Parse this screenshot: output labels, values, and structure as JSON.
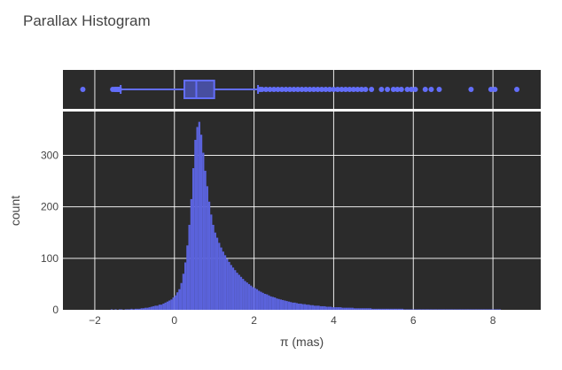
{
  "chart_data": {
    "type": "bar",
    "title": "Parallax Histogram",
    "xlabel": "π (mas)",
    "ylabel": "count",
    "xlim": [
      -2.8,
      9.2
    ],
    "ylim": [
      0,
      385
    ],
    "grid": true,
    "x_ticks": [
      -2,
      0,
      2,
      4,
      6,
      8
    ],
    "x_tick_labels": [
      "−2",
      "0",
      "2",
      "4",
      "6",
      "8"
    ],
    "y_ticks": [
      0,
      100,
      200,
      300
    ],
    "y_tick_labels": [
      "0",
      "100",
      "200",
      "300"
    ],
    "bin_width": 0.05,
    "bin_start": -1.6,
    "histogram_counts": [
      1,
      0,
      1,
      0,
      1,
      1,
      0,
      1,
      1,
      1,
      2,
      1,
      2,
      2,
      2,
      3,
      3,
      4,
      4,
      5,
      6,
      7,
      8,
      8,
      10,
      10,
      12,
      14,
      16,
      18,
      20,
      24,
      28,
      34,
      40,
      52,
      70,
      92,
      125,
      165,
      215,
      275,
      330,
      355,
      365,
      340,
      305,
      270,
      240,
      210,
      185,
      165,
      150,
      140,
      130,
      121,
      113,
      106,
      99,
      93,
      87,
      82,
      77,
      72,
      68,
      64,
      60,
      56,
      53,
      50,
      47,
      44,
      42,
      40,
      37,
      35,
      33,
      31,
      30,
      28,
      26,
      25,
      24,
      22,
      21,
      20,
      19,
      18,
      17,
      16,
      15,
      14,
      14,
      13,
      12,
      12,
      11,
      11,
      10,
      10,
      9,
      9,
      8,
      8,
      8,
      7,
      7,
      7,
      6,
      6,
      6,
      5,
      5,
      5,
      5,
      5,
      4,
      4,
      4,
      4,
      4,
      4,
      3,
      3,
      3,
      3,
      3,
      3,
      3,
      3,
      3,
      2,
      2,
      2,
      2,
      2,
      2,
      2,
      2,
      2,
      2,
      2,
      2,
      2,
      2,
      2,
      2,
      1,
      1,
      1,
      1,
      1,
      1,
      1,
      1,
      1,
      1,
      1,
      1,
      1,
      1,
      1,
      1,
      1,
      1,
      1,
      1,
      1,
      1,
      1,
      1,
      1,
      1,
      1,
      1,
      1,
      1,
      1,
      1,
      1,
      1,
      1,
      1,
      1,
      1,
      1,
      1,
      1,
      1,
      1,
      1,
      1,
      1,
      1,
      1,
      1
    ],
    "box": {
      "lower_fence": -1.35,
      "q1": 0.25,
      "median": 0.55,
      "q3": 1.0,
      "upper_fence": 2.1,
      "outliers": [
        -2.3,
        -1.55,
        -1.5,
        -1.47,
        -1.44,
        -1.42,
        -1.4,
        -1.38,
        2.15,
        2.2,
        2.3,
        2.4,
        2.5,
        2.6,
        2.7,
        2.8,
        2.9,
        3.0,
        3.1,
        3.2,
        3.3,
        3.4,
        3.5,
        3.6,
        3.7,
        3.8,
        3.9,
        4.0,
        4.1,
        4.2,
        4.3,
        4.4,
        4.5,
        4.6,
        4.7,
        4.8,
        4.95,
        5.2,
        5.35,
        5.5,
        5.6,
        5.7,
        5.85,
        5.95,
        6.05,
        6.3,
        6.45,
        6.65,
        7.45,
        7.95,
        8.05,
        8.6
      ]
    },
    "colors": {
      "bar": "#5b63dd",
      "box_line": "#636efa",
      "box_fill": "#474ea0",
      "plot_bg": "#2b2b2b",
      "grid": "#ffffff",
      "text": "#444444"
    }
  }
}
